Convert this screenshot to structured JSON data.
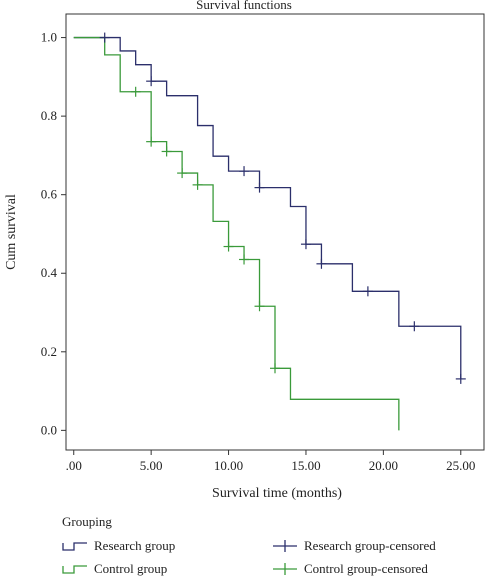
{
  "chart_data": {
    "type": "line",
    "title": "Survival functions",
    "xlabel": "Survival time (months)",
    "ylabel": "Cum survival",
    "xlim": [
      -0.5,
      26.5
    ],
    "ylim": [
      -0.05,
      1.06
    ],
    "x_ticks": [
      ".00",
      "5.00",
      "10.00",
      "15.00",
      "20.00",
      "25.00"
    ],
    "y_ticks": [
      "0.0",
      "0.2",
      "0.4",
      "0.6",
      "0.8",
      "1.0"
    ],
    "legend_title": "Grouping",
    "legend_placement": "bottom",
    "series": [
      {
        "name": "Research group",
        "color": "#2b2f6b",
        "steps": [
          [
            0,
            1.0
          ],
          [
            3,
            0.966
          ],
          [
            4,
            0.931
          ],
          [
            5,
            0.889
          ],
          [
            6,
            0.852
          ],
          [
            8,
            0.776
          ],
          [
            9,
            0.698
          ],
          [
            10,
            0.66
          ],
          [
            12,
            0.618
          ],
          [
            14,
            0.57
          ],
          [
            15,
            0.474
          ],
          [
            16,
            0.424
          ],
          [
            18,
            0.354
          ],
          [
            21,
            0.265
          ],
          [
            25,
            0.131
          ]
        ],
        "end_x": 25
      },
      {
        "name": "Control group",
        "color": "#3a9a3a",
        "steps": [
          [
            0,
            1.0
          ],
          [
            2,
            0.956
          ],
          [
            3,
            0.862
          ],
          [
            5,
            0.735
          ],
          [
            6,
            0.71
          ],
          [
            7,
            0.655
          ],
          [
            8,
            0.625
          ],
          [
            9,
            0.532
          ],
          [
            10,
            0.468
          ],
          [
            11,
            0.435
          ],
          [
            12,
            0.316
          ],
          [
            13,
            0.158
          ],
          [
            14,
            0.079
          ],
          [
            21,
            0.0
          ]
        ],
        "end_x": 21
      }
    ],
    "censored": [
      {
        "name": "Research group-censored",
        "color": "#2b2f6b",
        "points": [
          [
            2,
            1.0
          ],
          [
            5,
            0.889
          ],
          [
            11,
            0.66
          ],
          [
            12,
            0.618
          ],
          [
            15,
            0.474
          ],
          [
            16,
            0.424
          ],
          [
            19,
            0.354
          ],
          [
            22,
            0.265
          ],
          [
            25,
            0.131
          ]
        ]
      },
      {
        "name": "Control group-censored",
        "color": "#3a9a3a",
        "points": [
          [
            4,
            0.862
          ],
          [
            5,
            0.735
          ],
          [
            6,
            0.71
          ],
          [
            7,
            0.655
          ],
          [
            8,
            0.625
          ],
          [
            10,
            0.468
          ],
          [
            11,
            0.435
          ],
          [
            12,
            0.316
          ],
          [
            13,
            0.158
          ]
        ]
      }
    ]
  }
}
